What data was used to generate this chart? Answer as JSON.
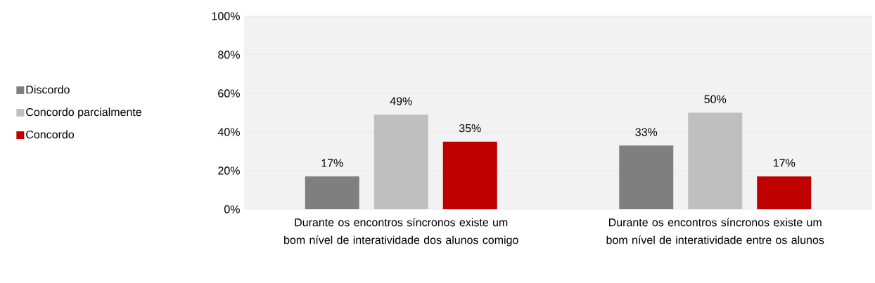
{
  "chart_data": {
    "type": "bar",
    "categories": [
      "Durante os encontros síncronos existe um bom nível de interatividade dos alunos comigo",
      "Durante os encontros síncronos existe um bom nível de interatividade entre os alunos"
    ],
    "series": [
      {
        "name": "Discordo",
        "color": "#7f7f7f",
        "values": [
          17,
          33
        ],
        "value_labels": [
          "17%",
          "33%"
        ]
      },
      {
        "name": "Concordo parcialmente",
        "color": "#bfbfbf",
        "values": [
          49,
          50
        ],
        "value_labels": [
          "49%",
          "50%"
        ]
      },
      {
        "name": "Concordo",
        "color": "#c00000",
        "values": [
          35,
          17
        ],
        "value_labels": [
          "35%",
          "17%"
        ]
      }
    ],
    "ylim": [
      0,
      100
    ],
    "yticks": [
      {
        "value": 0,
        "label": "0%"
      },
      {
        "value": 20,
        "label": "20%"
      },
      {
        "value": 40,
        "label": "40%"
      },
      {
        "value": 60,
        "label": "60%"
      },
      {
        "value": 80,
        "label": "80%"
      },
      {
        "value": 100,
        "label": "100%"
      }
    ],
    "grid": "y",
    "legend": "left"
  }
}
